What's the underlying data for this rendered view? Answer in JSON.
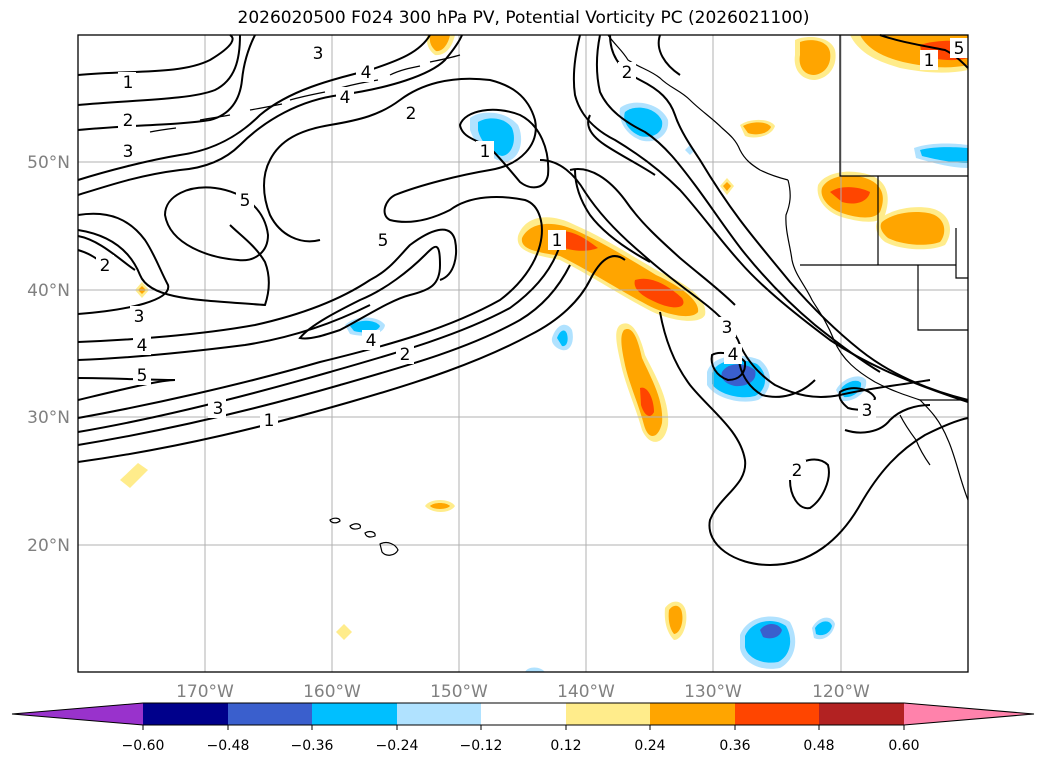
{
  "title": "2026020500 F024 300 hPa PV, Potential Vorticity PC (2026021100)",
  "lat_labels": [
    "50°N",
    "40°N",
    "30°N",
    "20°N"
  ],
  "lon_labels": [
    "170°W",
    "160°W",
    "150°W",
    "140°W",
    "130°W",
    "120°W"
  ],
  "colorbar": {
    "tick_labels": [
      "−0.60",
      "−0.48",
      "−0.36",
      "−0.24",
      "−0.12",
      "0.12",
      "0.24",
      "0.36",
      "0.48",
      "0.60"
    ],
    "colors": [
      "#9932cc",
      "#00008b",
      "#3a5fcd",
      "#00bfff",
      "#b0e2ff",
      "#ffffff",
      "#ffec8b",
      "#ffa500",
      "#ff4500",
      "#b22222",
      "#ff82ab"
    ]
  },
  "contour_labels": [
    "1",
    "2",
    "3",
    "1",
    "2",
    "3",
    "4",
    "5",
    "5",
    "4",
    "2",
    "3",
    "4",
    "5",
    "3",
    "2",
    "1",
    "1",
    "2",
    "5",
    "3",
    "4",
    "3",
    "2",
    "1",
    "4"
  ],
  "colors": {
    "outline": "#000000",
    "grid": "#b0b0b0"
  }
}
